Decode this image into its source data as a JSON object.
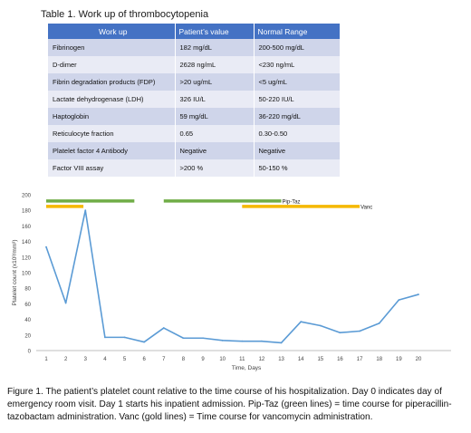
{
  "table": {
    "title": "Table 1. Work up of thrombocytopenia",
    "headers": [
      "Work up",
      "Patient’s value",
      "Normal Range"
    ],
    "rows": [
      [
        "Fibrinogen",
        "182  mg/dL",
        "200-500 mg/dL"
      ],
      [
        "D-dimer",
        "2628 ng/mL",
        "<230 ng/mL"
      ],
      [
        "Fibrin degradation products (FDP)",
        ">20 ug/mL",
        "<5 ug/mL"
      ],
      [
        "Lactate dehydrogenase (LDH)",
        "326 IU/L",
        "50-220 IU/L"
      ],
      [
        "Haptoglobin",
        "59 mg/dL",
        "36-220 mg/dL"
      ],
      [
        "Reticulocyte fraction",
        "0.65",
        "0.30-0.50"
      ],
      [
        "Platelet factor 4 Antibody",
        "Negative",
        "Negative"
      ],
      [
        "Factor VIII assay",
        ">200 %",
        "50-150 %"
      ]
    ]
  },
  "chart_data": {
    "type": "line",
    "x": [
      1,
      2,
      3,
      4,
      5,
      6,
      7,
      8,
      9,
      10,
      11,
      12,
      13,
      14,
      15,
      16,
      17,
      18,
      19,
      20
    ],
    "series": [
      {
        "values": [
          133,
          61,
          180,
          17,
          17,
          11,
          29,
          16,
          16,
          13,
          12,
          12,
          10,
          37,
          32,
          23,
          25,
          35,
          65,
          72
        ]
      }
    ],
    "xlabel": "Time, Days",
    "ylabel": "Platelet count (x10³/mm³)",
    "ylim": [
      0,
      200
    ],
    "yticks": [
      0,
      20,
      40,
      60,
      80,
      100,
      120,
      140,
      160,
      180,
      200
    ],
    "xlim": [
      1,
      20
    ],
    "line_color": "#5b9bd5",
    "grid": false,
    "medication_bars": [
      {
        "label": "",
        "color": "#70ad47",
        "start": 1,
        "end": 5.5,
        "level": 192
      },
      {
        "label": "Pip-Taz",
        "color": "#70ad47",
        "start": 7,
        "end": 13,
        "level": 192
      },
      {
        "label": "",
        "color": "#f5b800",
        "start": 1,
        "end": 2.9,
        "level": 185
      },
      {
        "label": "Vanc",
        "color": "#f5b800",
        "start": 11,
        "end": 17,
        "level": 185
      }
    ]
  },
  "caption": "Figure 1. The patient’s platelet count relative to the time course of his hospitalization. Day 0 indicates day of emergency room visit. Day 1 starts his inpatient admission. Pip-Taz (green lines) = time course for piperacillin-tazobactam administration. Vanc (gold lines) = Time course for vancomycin administration."
}
